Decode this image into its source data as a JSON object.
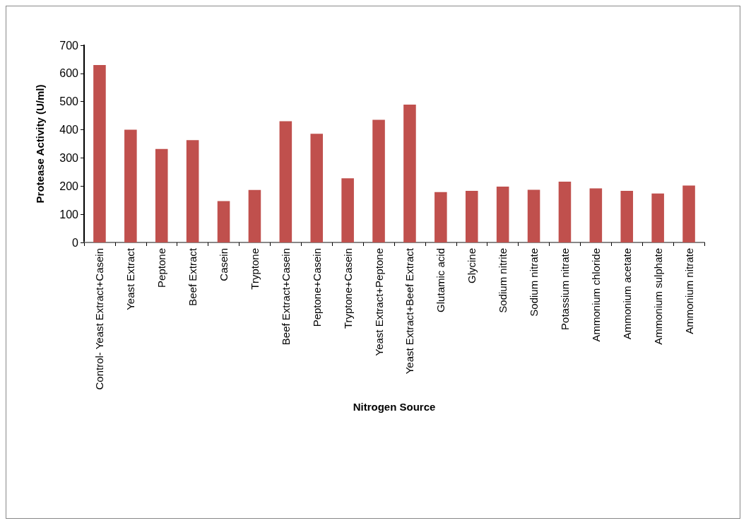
{
  "chart_data": {
    "type": "bar",
    "xlabel": "Nitrogen Source",
    "ylabel": "Protease Activity (U/ml)",
    "categories": [
      "Control- Yeast Extract+Casein",
      "Yeast Extract",
      "Peptone",
      "Beef Extract",
      "Casein",
      "Tryptone",
      "Beef Extract+Casein",
      "Peptone+Casein",
      "Tryptone+Casein",
      "Yeast Extract+Peptone",
      "Yeast Extract+Beef Extract",
      "Glutamic acid",
      "Glycine",
      "Sodium nitrite",
      "Sodium nitrate",
      "Potassium nitrate",
      "Ammonium chloride",
      "Ammonium acetate",
      "Ammonium sulphate",
      "Ammonium nitrate"
    ],
    "values": [
      630,
      400,
      332,
      363,
      147,
      186,
      430,
      386,
      228,
      435,
      489,
      179,
      183,
      198,
      187,
      216,
      192,
      183,
      174,
      202
    ],
    "color": "#c0504d",
    "ylim": [
      0,
      700
    ],
    "yticks": [
      0,
      100,
      200,
      300,
      400,
      500,
      600,
      700
    ],
    "grid": false
  }
}
